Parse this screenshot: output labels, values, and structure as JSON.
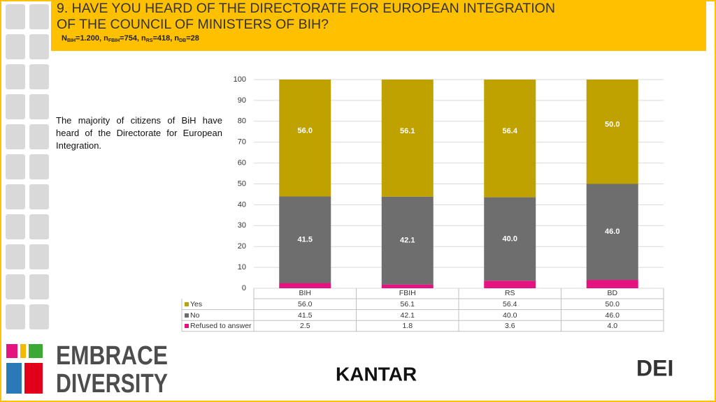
{
  "header": {
    "title": "9. HAVE YOU HEARD OF THE DIRECTORATE FOR EUROPEAN INTEGRATION OF THE COUNCIL OF MINISTERS OF BIH?",
    "subtitle": [
      "N",
      "BIH",
      "=1.200, n",
      "FBIH",
      "=754, n",
      "RS",
      "=418, n",
      "DB",
      "=28"
    ]
  },
  "note": "The majority of citizens of BiH have heard of the Directorate for European Integration.",
  "logos": {
    "embrace": "EMBRACE",
    "diversity": "DIVERSITY",
    "kantar": "KANTAR",
    "dei": "DEI"
  },
  "chart_data": {
    "type": "stacked_bar",
    "categories": [
      "BIH",
      "FBIH",
      "RS",
      "BD"
    ],
    "series": [
      {
        "name": "Refused to answer",
        "color": "#e4137f",
        "values": [
          2.5,
          1.8,
          3.6,
          4
        ],
        "value_labels": [
          "2.5",
          "1.8",
          "3.6",
          "4.0"
        ]
      },
      {
        "name": "No",
        "color": "#6e6e6e",
        "values": [
          41.5,
          42.1,
          40,
          46
        ],
        "value_labels": [
          "41.5",
          "42.1",
          "40.0",
          "46.0"
        ]
      },
      {
        "name": "Yes",
        "color": "#bfa100",
        "values": [
          56,
          56.1,
          56.4,
          50
        ],
        "value_labels": [
          "56.0",
          "56.1",
          "56.4",
          "50.0"
        ]
      }
    ],
    "ylim": [
      0,
      100
    ],
    "yticks": [
      0,
      10,
      20,
      30,
      40,
      50,
      60,
      70,
      80,
      90,
      100
    ],
    "grid": true,
    "legend": "table"
  }
}
